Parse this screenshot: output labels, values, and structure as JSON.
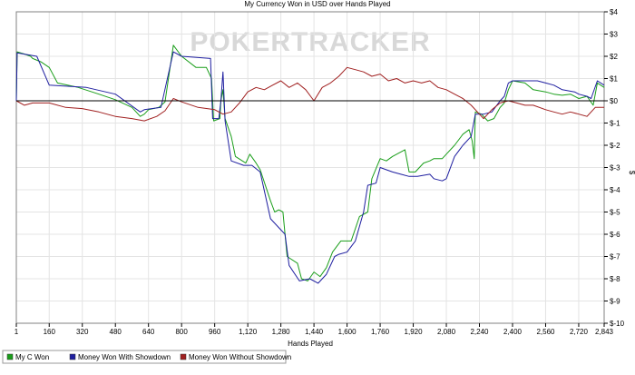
{
  "chart_data": {
    "type": "line",
    "title": "My Currency Won in USD over Hands Played",
    "xlabel": "Hands Played",
    "ylabel": "$",
    "xlim": [
      1,
      2843
    ],
    "ylim": [
      -10,
      4
    ],
    "x_ticks": [
      1,
      160,
      320,
      480,
      640,
      800,
      960,
      1120,
      1280,
      1440,
      1600,
      1760,
      1920,
      2080,
      2240,
      2400,
      2560,
      2720,
      2843
    ],
    "x_tick_labels": [
      "1",
      "160",
      "320",
      "480",
      "640",
      "800",
      "960",
      "1,120",
      "1,280",
      "1,440",
      "1,600",
      "1,760",
      "1,920",
      "2,080",
      "2,240",
      "2,400",
      "2,560",
      "2,720",
      "2,843"
    ],
    "y_ticks": [
      4,
      3,
      2,
      1,
      0,
      -1,
      -2,
      -3,
      -4,
      -5,
      -6,
      -7,
      -8,
      -9,
      -10
    ],
    "y_tick_labels": [
      "$4",
      "$3",
      "$2",
      "$1",
      "$0",
      "$-1",
      "$-2",
      "$-3",
      "$-4",
      "$-5",
      "$-6",
      "$-7",
      "$-8",
      "$-9",
      "$-10"
    ],
    "grid": true,
    "legend_position": "bottom-left",
    "watermark": "POKERTRACKER",
    "series": [
      {
        "name": "My C Won",
        "color": "#1a9e1a",
        "points": [
          [
            1,
            0
          ],
          [
            5,
            2.2
          ],
          [
            40,
            2.1
          ],
          [
            70,
            2.0
          ],
          [
            80,
            1.9
          ],
          [
            120,
            1.75
          ],
          [
            160,
            1.5
          ],
          [
            200,
            0.8
          ],
          [
            300,
            0.6
          ],
          [
            400,
            0.3
          ],
          [
            480,
            0.05
          ],
          [
            560,
            -0.3
          ],
          [
            600,
            -0.7
          ],
          [
            620,
            -0.6
          ],
          [
            640,
            -0.4
          ],
          [
            690,
            -0.3
          ],
          [
            720,
            -0.05
          ],
          [
            760,
            2.5
          ],
          [
            800,
            2.0
          ],
          [
            870,
            1.5
          ],
          [
            920,
            1.5
          ],
          [
            945,
            1.0
          ],
          [
            955,
            -0.9
          ],
          [
            985,
            -0.8
          ],
          [
            990,
            0.0
          ],
          [
            1000,
            0.5
          ],
          [
            1010,
            -0.8
          ],
          [
            1040,
            -1.6
          ],
          [
            1060,
            -2.5
          ],
          [
            1110,
            -2.8
          ],
          [
            1130,
            -2.4
          ],
          [
            1160,
            -2.8
          ],
          [
            1180,
            -3.1
          ],
          [
            1230,
            -4.5
          ],
          [
            1250,
            -5.0
          ],
          [
            1270,
            -4.9
          ],
          [
            1290,
            -5.0
          ],
          [
            1310,
            -7.0
          ],
          [
            1360,
            -7.3
          ],
          [
            1380,
            -8.0
          ],
          [
            1410,
            -8.1
          ],
          [
            1440,
            -7.7
          ],
          [
            1470,
            -7.9
          ],
          [
            1500,
            -7.5
          ],
          [
            1530,
            -6.8
          ],
          [
            1570,
            -6.3
          ],
          [
            1620,
            -6.3
          ],
          [
            1660,
            -5.2
          ],
          [
            1700,
            -5.0
          ],
          [
            1720,
            -3.5
          ],
          [
            1760,
            -2.6
          ],
          [
            1790,
            -2.7
          ],
          [
            1820,
            -2.5
          ],
          [
            1880,
            -2.2
          ],
          [
            1900,
            -3.2
          ],
          [
            1930,
            -3.2
          ],
          [
            1970,
            -2.8
          ],
          [
            2000,
            -2.7
          ],
          [
            2020,
            -2.6
          ],
          [
            2060,
            -2.6
          ],
          [
            2080,
            -2.4
          ],
          [
            2120,
            -2.0
          ],
          [
            2160,
            -1.5
          ],
          [
            2190,
            -1.3
          ],
          [
            2205,
            -1.8
          ],
          [
            2215,
            -2.6
          ],
          [
            2220,
            -0.5
          ],
          [
            2250,
            -0.6
          ],
          [
            2280,
            -0.9
          ],
          [
            2310,
            -0.8
          ],
          [
            2340,
            -0.3
          ],
          [
            2360,
            -0.1
          ],
          [
            2380,
            0.5
          ],
          [
            2400,
            0.9
          ],
          [
            2460,
            0.8
          ],
          [
            2500,
            0.5
          ],
          [
            2560,
            0.4
          ],
          [
            2600,
            0.3
          ],
          [
            2640,
            0.25
          ],
          [
            2680,
            0.3
          ],
          [
            2720,
            0.1
          ],
          [
            2760,
            0.2
          ],
          [
            2790,
            -0.2
          ],
          [
            2810,
            0.8
          ],
          [
            2843,
            0.6
          ]
        ]
      },
      {
        "name": "Money Won With Showdown",
        "color": "#1f1fa0",
        "points": [
          [
            1,
            0
          ],
          [
            5,
            2.15
          ],
          [
            100,
            2.0
          ],
          [
            160,
            0.7
          ],
          [
            340,
            0.6
          ],
          [
            480,
            0.3
          ],
          [
            600,
            -0.5
          ],
          [
            620,
            -0.4
          ],
          [
            700,
            -0.3
          ],
          [
            760,
            2.2
          ],
          [
            800,
            2.0
          ],
          [
            940,
            1.9
          ],
          [
            950,
            -0.8
          ],
          [
            980,
            -0.8
          ],
          [
            990,
            0.0
          ],
          [
            1000,
            1.3
          ],
          [
            1010,
            -0.9
          ],
          [
            1040,
            -2.7
          ],
          [
            1100,
            -2.9
          ],
          [
            1140,
            -2.9
          ],
          [
            1180,
            -3.2
          ],
          [
            1230,
            -5.3
          ],
          [
            1280,
            -5.8
          ],
          [
            1300,
            -6.0
          ],
          [
            1320,
            -7.4
          ],
          [
            1370,
            -8.1
          ],
          [
            1420,
            -8.0
          ],
          [
            1460,
            -8.2
          ],
          [
            1500,
            -7.8
          ],
          [
            1540,
            -7.0
          ],
          [
            1560,
            -6.9
          ],
          [
            1600,
            -6.8
          ],
          [
            1640,
            -6.3
          ],
          [
            1680,
            -5.0
          ],
          [
            1700,
            -3.8
          ],
          [
            1740,
            -3.7
          ],
          [
            1760,
            -3.0
          ],
          [
            1820,
            -3.2
          ],
          [
            1860,
            -3.3
          ],
          [
            1900,
            -3.4
          ],
          [
            1940,
            -3.4
          ],
          [
            2000,
            -3.3
          ],
          [
            2020,
            -3.5
          ],
          [
            2060,
            -3.6
          ],
          [
            2080,
            -3.5
          ],
          [
            2120,
            -2.5
          ],
          [
            2160,
            -2.0
          ],
          [
            2200,
            -1.6
          ],
          [
            2220,
            -0.6
          ],
          [
            2260,
            -0.6
          ],
          [
            2300,
            -0.5
          ],
          [
            2340,
            0.0
          ],
          [
            2360,
            0.2
          ],
          [
            2380,
            0.8
          ],
          [
            2400,
            0.9
          ],
          [
            2460,
            0.9
          ],
          [
            2520,
            0.9
          ],
          [
            2560,
            0.8
          ],
          [
            2600,
            0.7
          ],
          [
            2640,
            0.5
          ],
          [
            2700,
            0.4
          ],
          [
            2720,
            0.3
          ],
          [
            2760,
            0.2
          ],
          [
            2780,
            0.1
          ],
          [
            2810,
            0.9
          ],
          [
            2843,
            0.7
          ]
        ]
      },
      {
        "name": "Money Won Without Showdown",
        "color": "#a01f1f",
        "points": [
          [
            1,
            0
          ],
          [
            40,
            -0.2
          ],
          [
            80,
            -0.1
          ],
          [
            160,
            -0.1
          ],
          [
            240,
            -0.3
          ],
          [
            320,
            -0.35
          ],
          [
            400,
            -0.5
          ],
          [
            480,
            -0.7
          ],
          [
            560,
            -0.8
          ],
          [
            620,
            -0.9
          ],
          [
            680,
            -0.7
          ],
          [
            720,
            -0.45
          ],
          [
            760,
            0.1
          ],
          [
            800,
            -0.05
          ],
          [
            880,
            -0.3
          ],
          [
            960,
            -0.4
          ],
          [
            1000,
            -0.6
          ],
          [
            1040,
            -0.5
          ],
          [
            1080,
            -0.1
          ],
          [
            1120,
            0.4
          ],
          [
            1160,
            0.6
          ],
          [
            1200,
            0.5
          ],
          [
            1240,
            0.7
          ],
          [
            1280,
            0.9
          ],
          [
            1320,
            0.6
          ],
          [
            1360,
            0.8
          ],
          [
            1400,
            0.5
          ],
          [
            1440,
            0.0
          ],
          [
            1480,
            0.6
          ],
          [
            1520,
            0.8
          ],
          [
            1560,
            1.1
          ],
          [
            1600,
            1.5
          ],
          [
            1640,
            1.4
          ],
          [
            1680,
            1.3
          ],
          [
            1720,
            1.1
          ],
          [
            1760,
            1.2
          ],
          [
            1800,
            0.9
          ],
          [
            1840,
            1.0
          ],
          [
            1880,
            0.8
          ],
          [
            1920,
            0.9
          ],
          [
            1960,
            0.8
          ],
          [
            2000,
            0.9
          ],
          [
            2040,
            0.6
          ],
          [
            2080,
            0.5
          ],
          [
            2120,
            0.3
          ],
          [
            2160,
            0.1
          ],
          [
            2200,
            -0.2
          ],
          [
            2240,
            -0.6
          ],
          [
            2260,
            -0.8
          ],
          [
            2300,
            -0.4
          ],
          [
            2340,
            -0.1
          ],
          [
            2380,
            0.0
          ],
          [
            2420,
            -0.1
          ],
          [
            2460,
            -0.2
          ],
          [
            2500,
            -0.2
          ],
          [
            2560,
            -0.4
          ],
          [
            2600,
            -0.5
          ],
          [
            2640,
            -0.6
          ],
          [
            2680,
            -0.5
          ],
          [
            2720,
            -0.6
          ],
          [
            2760,
            -0.7
          ],
          [
            2800,
            -0.3
          ],
          [
            2843,
            -0.3
          ]
        ]
      }
    ]
  }
}
